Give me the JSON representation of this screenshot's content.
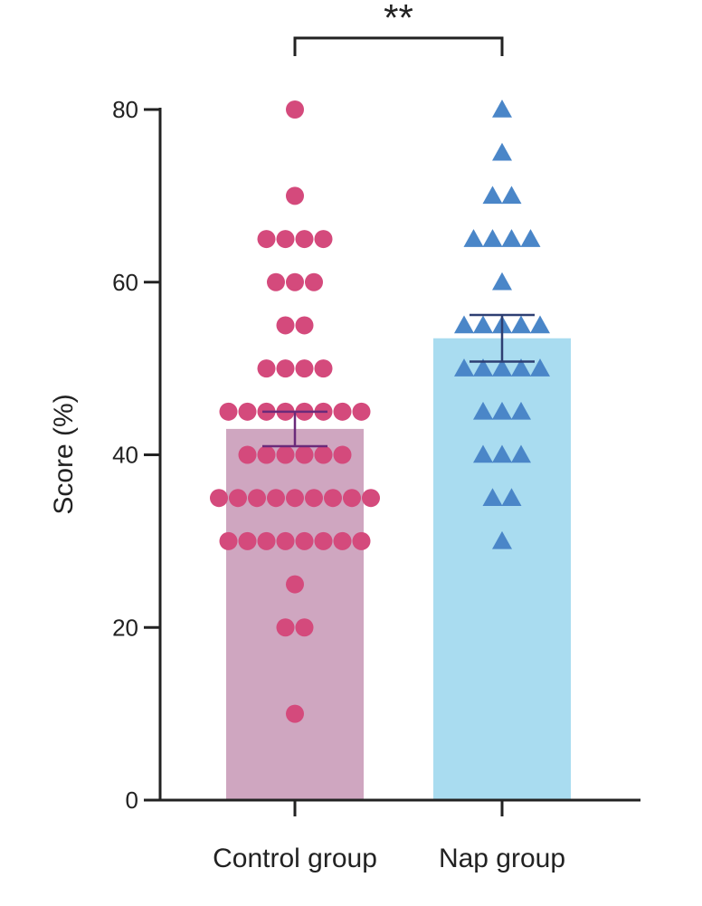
{
  "chart_data": {
    "type": "bar",
    "ylabel": "Score (%)",
    "ylim": [
      0,
      80
    ],
    "yticks": [
      "0",
      "20",
      "40",
      "60",
      "80"
    ],
    "categories": [
      "Control group",
      "Nap group"
    ],
    "means": [
      43,
      53.5
    ],
    "sem": [
      [
        41,
        45
      ],
      [
        50.8,
        56.2
      ]
    ],
    "significance": "**",
    "colors": {
      "control_bar": "#cfa6c0",
      "control_points": "#d44a7c",
      "control_error": "#6a2a7a",
      "nap_bar": "#a9dcf0",
      "nap_points": "#4a86c8",
      "nap_error": "#2e3f72",
      "axis": "#222222"
    },
    "points": {
      "control": [
        80,
        70,
        65,
        65,
        65,
        65,
        60,
        60,
        60,
        55,
        55,
        50,
        50,
        50,
        50,
        45,
        45,
        45,
        45,
        45,
        45,
        45,
        45,
        40,
        40,
        40,
        40,
        40,
        40,
        35,
        35,
        35,
        35,
        35,
        35,
        35,
        35,
        35,
        30,
        30,
        30,
        30,
        30,
        30,
        30,
        30,
        25,
        20,
        20,
        10
      ],
      "nap": [
        80,
        75,
        70,
        70,
        65,
        65,
        65,
        65,
        60,
        55,
        55,
        55,
        55,
        55,
        50,
        50,
        50,
        50,
        50,
        45,
        45,
        45,
        40,
        40,
        40,
        35,
        35,
        30
      ]
    },
    "markers": [
      "circle",
      "triangle"
    ]
  }
}
